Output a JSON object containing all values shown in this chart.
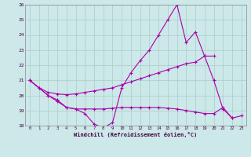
{
  "xlabel": "Windchill (Refroidissement éolien,°C)",
  "xlim": [
    -0.5,
    23.5
  ],
  "ylim": [
    18,
    26
  ],
  "yticks": [
    18,
    19,
    20,
    21,
    22,
    23,
    24,
    25,
    26
  ],
  "xticks": [
    0,
    1,
    2,
    3,
    4,
    5,
    6,
    7,
    8,
    9,
    10,
    11,
    12,
    13,
    14,
    15,
    16,
    17,
    18,
    19,
    20,
    21,
    22,
    23
  ],
  "background_color": "#cce8e8",
  "grid_color": "#aacccc",
  "line_color": "#aa00aa",
  "line1_x": [
    0,
    1,
    2,
    3,
    4,
    5,
    6,
    7,
    8,
    9,
    10,
    11,
    12,
    13,
    14,
    15,
    16,
    17,
    18,
    19,
    20,
    21,
    22
  ],
  "line1_y": [
    21.0,
    20.5,
    20.0,
    19.7,
    19.2,
    19.1,
    18.8,
    18.1,
    17.85,
    18.2,
    20.5,
    21.5,
    22.3,
    23.0,
    24.0,
    25.0,
    26.0,
    23.5,
    24.2,
    22.6,
    21.0,
    19.1,
    18.5
  ],
  "line2_x": [
    0,
    1,
    2,
    3,
    4,
    5,
    6,
    7,
    8,
    9,
    10,
    11,
    12,
    13,
    14,
    15,
    16,
    17,
    18,
    19,
    20
  ],
  "line2_y": [
    21.0,
    20.5,
    20.2,
    20.1,
    20.05,
    20.1,
    20.2,
    20.3,
    20.4,
    20.5,
    20.7,
    20.9,
    21.1,
    21.3,
    21.5,
    21.7,
    21.9,
    22.1,
    22.2,
    22.6,
    22.6
  ],
  "line3_x": [
    0,
    1,
    2,
    3,
    4,
    5,
    6,
    7,
    8,
    9,
    10,
    11,
    12,
    13,
    14,
    15,
    16,
    17,
    18,
    19,
    20,
    21,
    22,
    23
  ],
  "line3_y": [
    21.0,
    20.5,
    20.0,
    19.6,
    19.2,
    19.1,
    19.1,
    19.1,
    19.1,
    19.15,
    19.2,
    19.2,
    19.2,
    19.2,
    19.2,
    19.15,
    19.1,
    19.0,
    18.9,
    18.8,
    18.8,
    19.2,
    18.5,
    18.65
  ]
}
